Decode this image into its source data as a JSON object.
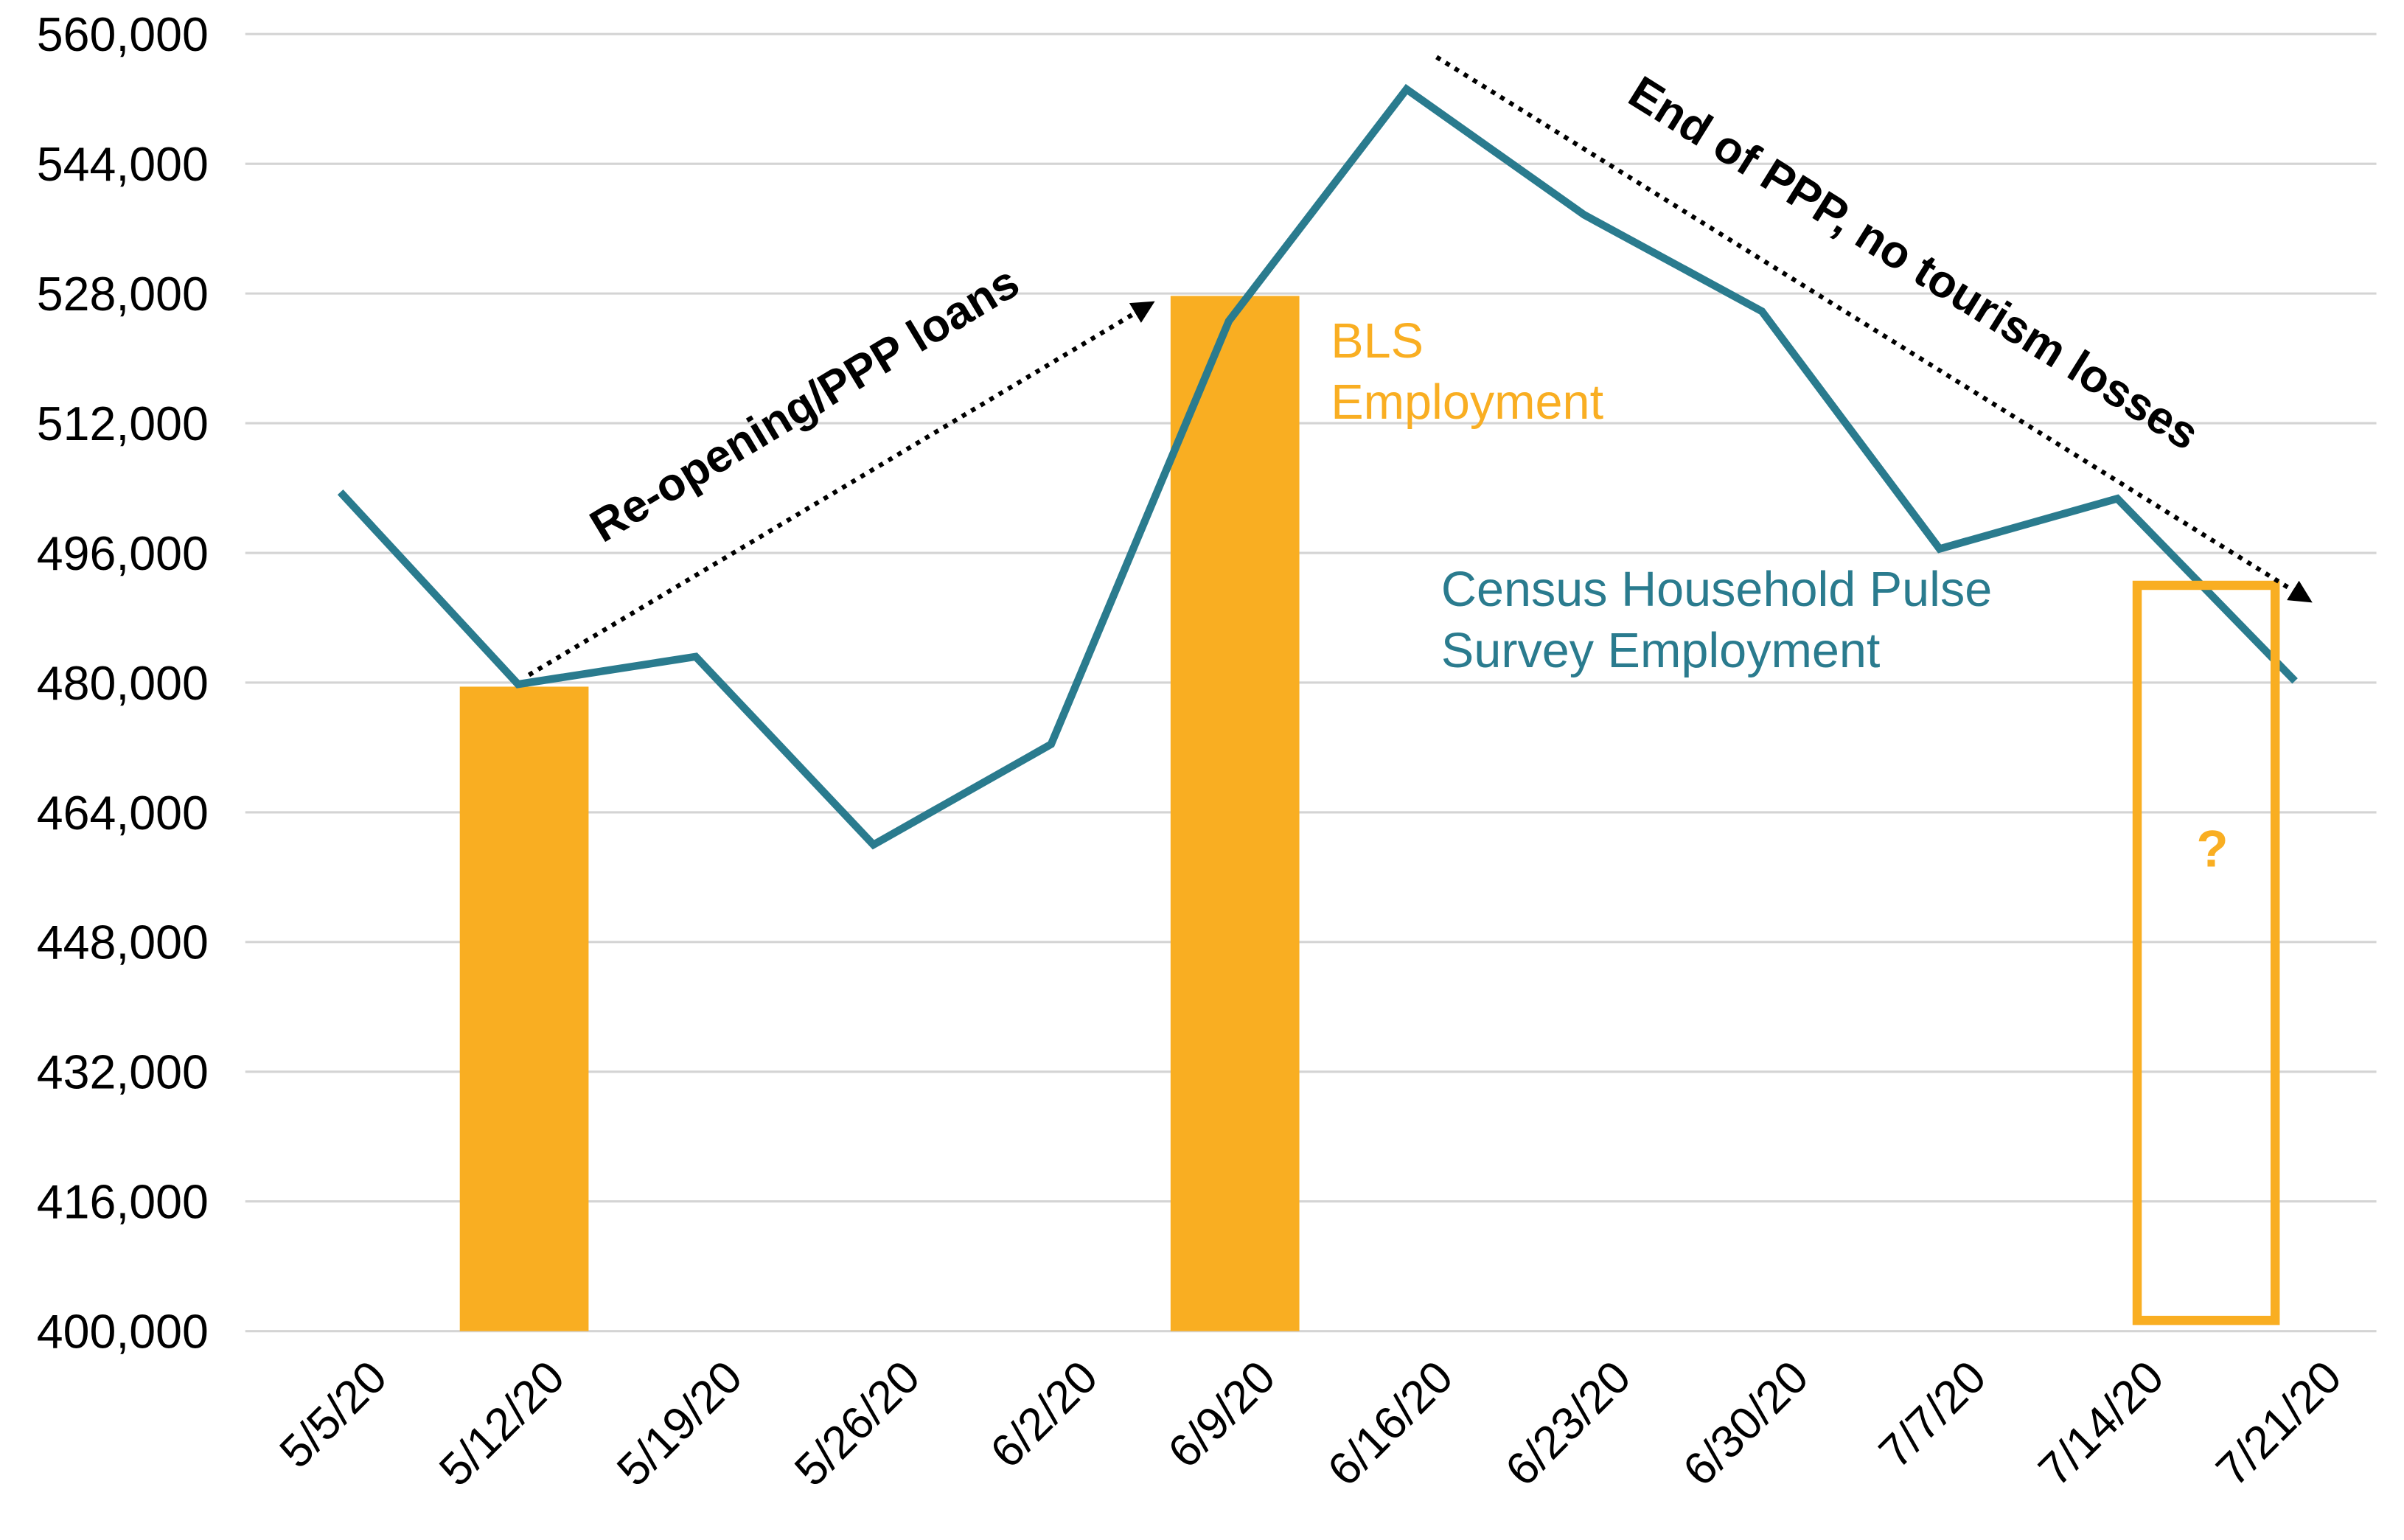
{
  "chart_data": {
    "type": "bar_line",
    "categories": [
      "5/5/20",
      "5/12/20",
      "5/19/20",
      "5/26/20",
      "6/2/20",
      "6/9/20",
      "6/16/20",
      "6/23/20",
      "6/30/20",
      "7/7/20",
      "7/14/20",
      "7/21/20"
    ],
    "series": [
      {
        "name": "BLS Employment",
        "type": "bar",
        "color": "#f9ae22",
        "values": [
          null,
          479500,
          null,
          null,
          null,
          527700,
          null,
          null,
          null,
          null,
          null,
          null
        ]
      },
      {
        "name": "Census Household Pulse Survey Employment",
        "type": "line",
        "color": "#2a7b8e",
        "values": [
          503500,
          479800,
          483200,
          460000,
          472400,
          524600,
          553200,
          537700,
          525800,
          496500,
          502700,
          480200
        ]
      }
    ],
    "pending_bar": {
      "value": 492000,
      "label": "?",
      "color": "#f9ae22"
    },
    "annotations": [
      "Re-opening/PPP loans",
      "End of PPP, no tourism losses"
    ],
    "ylim": [
      400000,
      560000
    ],
    "yticks": [
      {
        "value": 400000,
        "label": "400,000"
      },
      {
        "value": 416000,
        "label": "416,000"
      },
      {
        "value": 432000,
        "label": "432,000"
      },
      {
        "value": 448000,
        "label": "448,000"
      },
      {
        "value": 464000,
        "label": "464,000"
      },
      {
        "value": 480000,
        "label": "480,000"
      },
      {
        "value": 496000,
        "label": "496,000"
      },
      {
        "value": 512000,
        "label": "512,000"
      },
      {
        "value": 528000,
        "label": "528,000"
      },
      {
        "value": 544000,
        "label": "544,000"
      },
      {
        "value": 560000,
        "label": "560,000"
      }
    ],
    "grid": true
  }
}
